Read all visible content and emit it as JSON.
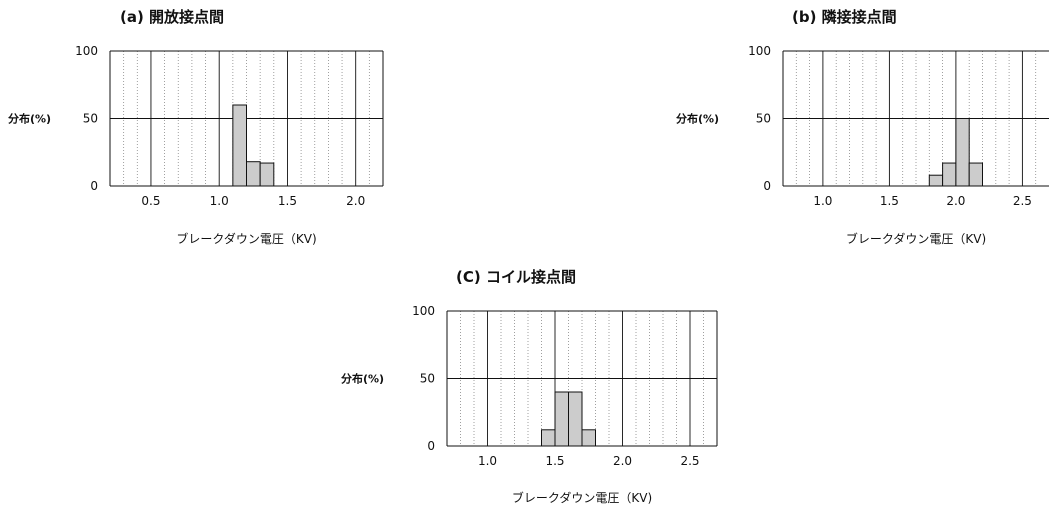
{
  "chart_data": [
    {
      "type": "bar",
      "title": "(a) 開放接点間",
      "xlabel": "ブレークダウン電圧（KV)",
      "ylabel": "分布(%)",
      "xlim": [
        0.2,
        2.2
      ],
      "ylim": [
        0,
        100
      ],
      "yticks": [
        0,
        50,
        100
      ],
      "xticks": [
        "0.5",
        "1.0",
        "1.5",
        "2.0"
      ],
      "xtick_values": [
        0.5,
        1.0,
        1.5,
        2.0
      ],
      "bin_width": 0.1,
      "bars": [
        {
          "x": 1.1,
          "value": 60
        },
        {
          "x": 1.2,
          "value": 18
        },
        {
          "x": 1.3,
          "value": 17
        }
      ],
      "grid": true
    },
    {
      "type": "bar",
      "title": "(b) 隣接接点間",
      "xlabel": "ブレークダウン電圧（KV)",
      "ylabel": "分布(%)",
      "xlim": [
        0.7,
        2.7
      ],
      "ylim": [
        0,
        100
      ],
      "yticks": [
        0,
        50,
        100
      ],
      "xticks": [
        "1.0",
        "1.5",
        "2.0",
        "2.5"
      ],
      "xtick_values": [
        1.0,
        1.5,
        2.0,
        2.5
      ],
      "bin_width": 0.1,
      "bars": [
        {
          "x": 1.8,
          "value": 8
        },
        {
          "x": 1.9,
          "value": 17
        },
        {
          "x": 2.0,
          "value": 50
        },
        {
          "x": 2.1,
          "value": 17
        }
      ],
      "grid": true
    },
    {
      "type": "bar",
      "title": "(C) コイル接点間",
      "xlabel": "ブレークダウン電圧（KV)",
      "ylabel": "分布(%)",
      "xlim": [
        0.7,
        2.7
      ],
      "ylim": [
        0,
        100
      ],
      "yticks": [
        0,
        50,
        100
      ],
      "xticks": [
        "1.0",
        "1.5",
        "2.0",
        "2.5"
      ],
      "xtick_values": [
        1.0,
        1.5,
        2.0,
        2.5
      ],
      "bin_width": 0.1,
      "bars": [
        {
          "x": 1.4,
          "value": 12
        },
        {
          "x": 1.5,
          "value": 40
        },
        {
          "x": 1.6,
          "value": 40
        },
        {
          "x": 1.7,
          "value": 12
        }
      ],
      "grid": true
    }
  ],
  "colors": {
    "bar_fill": "#cccccc",
    "stroke": "#111111",
    "grid_minor": "#888888"
  }
}
